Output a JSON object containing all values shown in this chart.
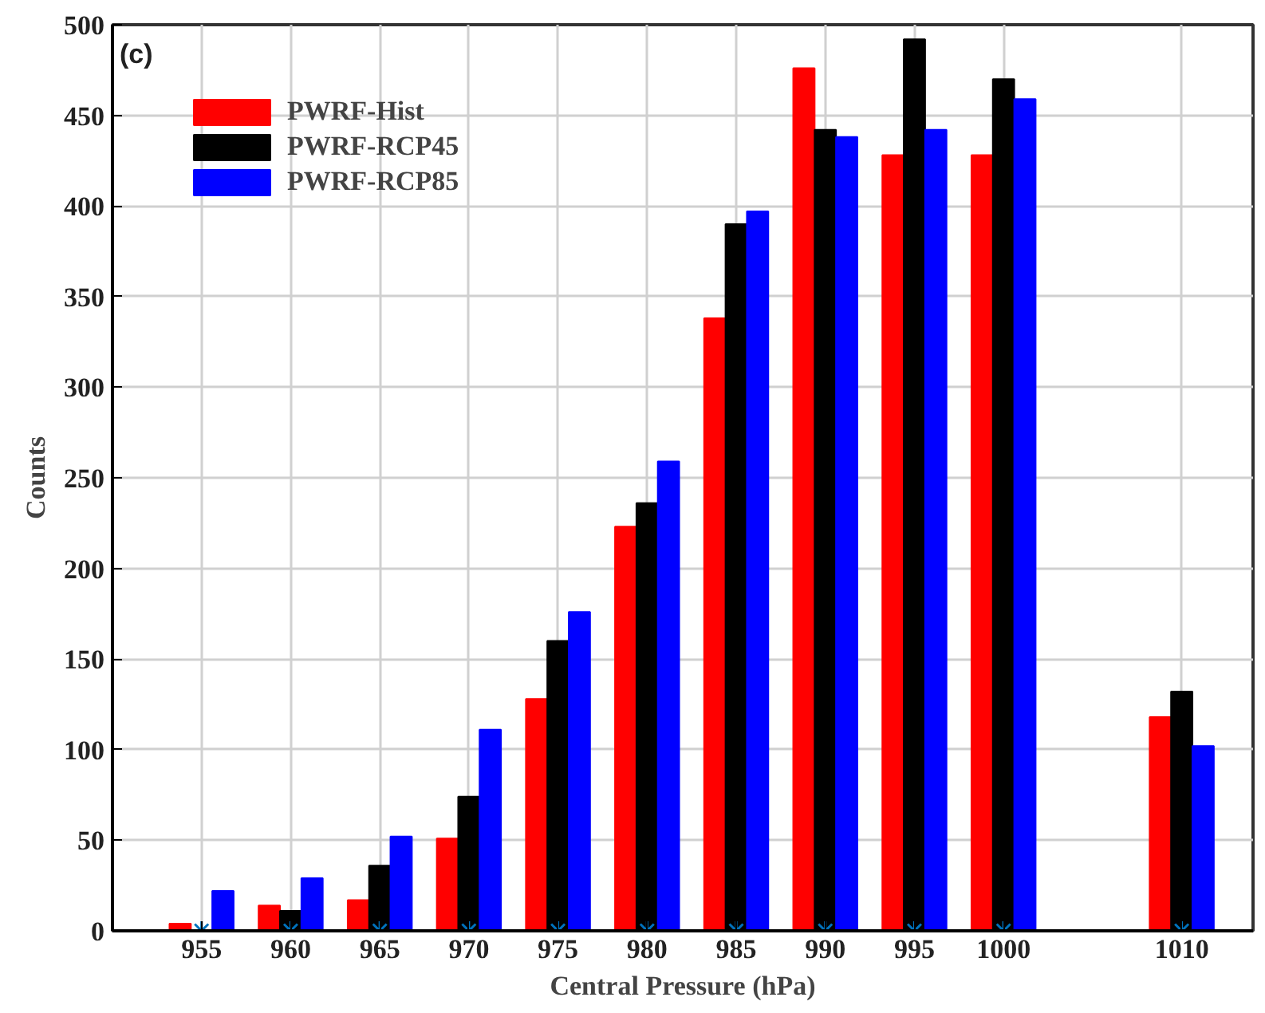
{
  "chart_data": {
    "type": "bar",
    "title": "(c)",
    "xlabel": "Central Pressure (hPa)",
    "ylabel": "Counts",
    "x": [
      955,
      960,
      965,
      970,
      975,
      980,
      985,
      990,
      995,
      1000,
      1010
    ],
    "series": [
      {
        "name": "PWRF-Hist",
        "color": "#ff0000",
        "values": [
          4,
          14,
          17,
          51,
          128,
          223,
          338,
          476,
          428,
          428,
          118
        ]
      },
      {
        "name": "PWRF-RCP45",
        "color": "#000000",
        "values": [
          null,
          11,
          36,
          74,
          160,
          236,
          390,
          442,
          492,
          470,
          132
        ]
      },
      {
        "name": "PWRF-RCP85",
        "color": "#0000ff",
        "values": [
          22,
          29,
          52,
          111,
          176,
          259,
          397,
          438,
          442,
          459,
          102
        ]
      },
      {
        "type": "scatter",
        "color": "#0072bd",
        "marker": "cross",
        "values": [
          0,
          0,
          0,
          0,
          0,
          0,
          0,
          0,
          0,
          0,
          0
        ]
      }
    ],
    "xlim": [
      950,
      1014
    ],
    "ylim": [
      0,
      500
    ],
    "xticks": [
      955,
      960,
      965,
      970,
      975,
      980,
      985,
      990,
      995,
      1000,
      1010
    ],
    "yticks": [
      0,
      50,
      100,
      150,
      200,
      250,
      300,
      350,
      400,
      450,
      500
    ],
    "grid": true,
    "legend": "top left"
  }
}
